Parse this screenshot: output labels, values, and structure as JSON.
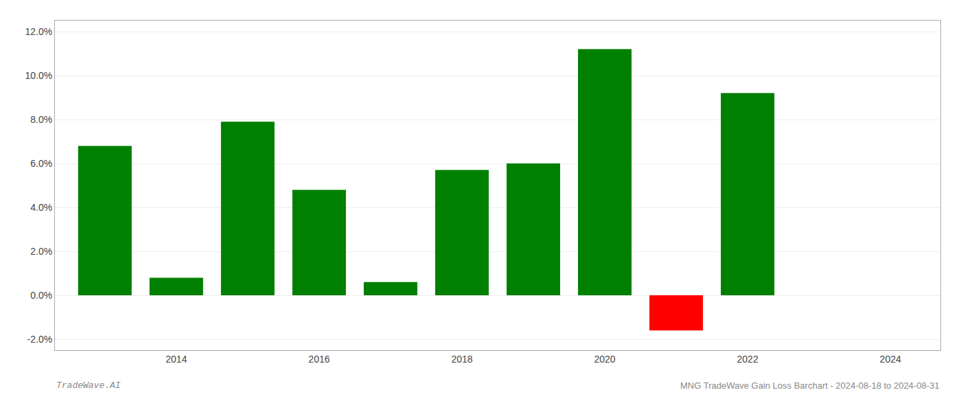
{
  "chart_data": {
    "type": "bar",
    "x": [
      2013,
      2014,
      2015,
      2016,
      2017,
      2018,
      2019,
      2020,
      2021,
      2022,
      2023
    ],
    "values": [
      0.068,
      0.008,
      0.079,
      0.048,
      0.006,
      0.057,
      0.06,
      0.112,
      -0.016,
      0.092,
      0.0
    ],
    "colors": [
      "#008000",
      "#008000",
      "#008000",
      "#008000",
      "#008000",
      "#008000",
      "#008000",
      "#008000",
      "#ff0000",
      "#008000",
      "#008000"
    ],
    "xlim": [
      2012.3,
      2024.7
    ],
    "xticks": [
      2014,
      2016,
      2018,
      2020,
      2022,
      2024
    ],
    "ylim": [
      -0.025,
      0.125
    ],
    "yticks": [
      {
        "value": -0.02,
        "label": "-2.0%"
      },
      {
        "value": 0.0,
        "label": "0.0%"
      },
      {
        "value": 0.02,
        "label": "2.0%"
      },
      {
        "value": 0.04,
        "label": "4.0%"
      },
      {
        "value": 0.06,
        "label": "6.0%"
      },
      {
        "value": 0.08,
        "label": "8.0%"
      },
      {
        "value": 0.1,
        "label": "10.0%"
      },
      {
        "value": 0.12,
        "label": "12.0%"
      }
    ],
    "grid": true,
    "annotations": [
      {
        "text": "TradeWave.AI"
      },
      {
        "text": "MNG TradeWave Gain Loss Barchart - 2024-08-18 to 2024-08-31"
      }
    ]
  }
}
